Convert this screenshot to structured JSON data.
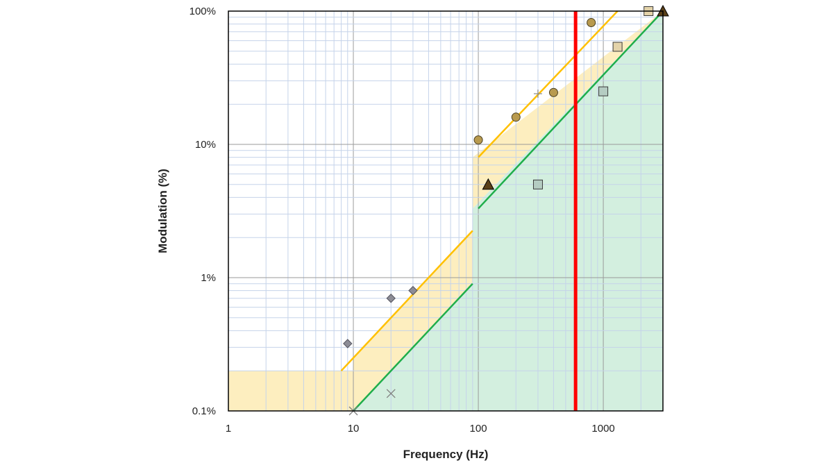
{
  "chart_data": {
    "type": "scatter",
    "title": "",
    "xlabel": "Frequency (Hz)",
    "ylabel": "Modulation  (%)",
    "x_scale": "log",
    "y_scale": "log",
    "xlim": [
      1,
      3000
    ],
    "ylim": [
      0.1,
      100
    ],
    "x_ticks": [
      {
        "value": 1,
        "label": "1"
      },
      {
        "value": 10,
        "label": "10"
      },
      {
        "value": 100,
        "label": "100"
      },
      {
        "value": 1000,
        "label": "1000"
      }
    ],
    "y_ticks": [
      {
        "value": 0.1,
        "label": "0.1%"
      },
      {
        "value": 1,
        "label": "1%"
      },
      {
        "value": 10,
        "label": "10%"
      },
      {
        "value": 100,
        "label": "100%"
      }
    ],
    "grid": true,
    "legend": "none",
    "colors": {
      "grid_minor": "#c5d3ea",
      "grid_major": "#9a9a9a",
      "frame": "#000000",
      "yellow_line": "#ffc000",
      "green_line": "#1fae4b",
      "yellow_fill": "#fdeebf",
      "green_fill": "#d3efdf",
      "threshold": "#ff0000"
    },
    "regions": [
      {
        "name": "low-risk-band-low-freq",
        "color": "#fdeebf",
        "x": [
          1,
          10
        ],
        "y_lower": [
          0.1,
          0.1
        ],
        "y_upper": [
          0.2,
          0.2
        ]
      },
      {
        "name": "low-risk-band-mid-freq",
        "color": "#fdeebf",
        "x": [
          10,
          90
        ],
        "y_lower": [
          0.1,
          0.9
        ],
        "y_upper": [
          0.25,
          2.25
        ]
      },
      {
        "name": "low-risk-band-high-freq",
        "color": "#fdeebf",
        "x": [
          90,
          3000
        ],
        "y_lower": [
          3.3,
          100
        ],
        "y_upper": [
          8,
          240
        ]
      },
      {
        "name": "no-effect-band-mid-freq",
        "color": "#d3efdf",
        "x": [
          10,
          90
        ],
        "y_lower": [
          0.1,
          0.1
        ],
        "y_upper": [
          0.1,
          0.9
        ]
      },
      {
        "name": "no-effect-band-high-freq",
        "color": "#d3efdf",
        "x": [
          90,
          3000
        ],
        "y_lower": [
          0.1,
          0.1
        ],
        "y_upper": [
          3.3,
          100
        ]
      }
    ],
    "lines": [
      {
        "name": "yellow-line-low",
        "color": "#ffc000",
        "x": [
          8,
          90
        ],
        "y": [
          0.2,
          2.25
        ]
      },
      {
        "name": "yellow-line-high",
        "color": "#ffc000",
        "x": [
          100,
          1300
        ],
        "y": [
          8,
          100
        ]
      },
      {
        "name": "green-line-low",
        "color": "#1fae4b",
        "x": [
          10,
          90
        ],
        "y": [
          0.1,
          0.9
        ]
      },
      {
        "name": "green-line-high",
        "color": "#1fae4b",
        "x": [
          100,
          3000
        ],
        "y": [
          3.3,
          100
        ]
      }
    ],
    "threshold": {
      "x": 600,
      "color": "#ff0000"
    },
    "series": [
      {
        "marker": "diamond",
        "fill": "#8c8c96",
        "x": [
          9,
          20,
          30
        ],
        "y": [
          0.32,
          0.7,
          0.8
        ]
      },
      {
        "marker": "x",
        "fill": "#7f7f7f",
        "x": [
          10,
          20
        ],
        "y": [
          0.1,
          0.135
        ]
      },
      {
        "marker": "circle",
        "fill": "#b89a4e",
        "x": [
          100,
          200,
          400,
          800
        ],
        "y": [
          10.8,
          16,
          24.5,
          82
        ]
      },
      {
        "marker": "plus",
        "fill": "#8c8c8c",
        "x": [
          300
        ],
        "y": [
          24
        ]
      },
      {
        "marker": "triangle",
        "fill": "#5a4018",
        "x": [
          120,
          3000
        ],
        "y": [
          5,
          100
        ]
      },
      {
        "marker": "square",
        "fill": "#b5ccc2",
        "x": [
          300,
          1000
        ],
        "y": [
          5,
          25
        ]
      },
      {
        "marker": "square",
        "fill": "#e3d3aa",
        "x": [
          1300,
          2300
        ],
        "y": [
          54,
          100
        ]
      }
    ]
  }
}
